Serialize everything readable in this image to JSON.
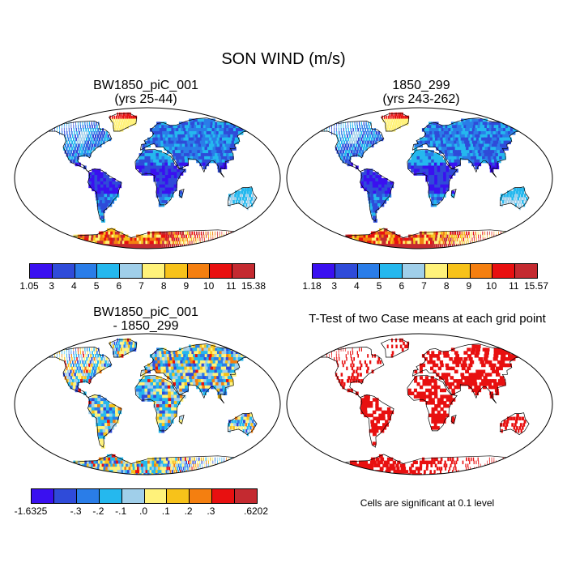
{
  "title": "SON WIND (m/s)",
  "panels": [
    {
      "id": "p1",
      "title_line1": "BW1850_piC_001",
      "title_line2": "(yrs 25-44)"
    },
    {
      "id": "p2",
      "title_line1": "1850_299",
      "title_line2": "(yrs 243-262)"
    },
    {
      "id": "p3",
      "title_line1": "BW1850_piC_001",
      "title_line2": "- 1850_299"
    },
    {
      "id": "p4",
      "title_line1": "T-Test of two Case means at each grid point",
      "title_line2": ""
    }
  ],
  "colorbars": [
    {
      "colors": [
        "#3a10f0",
        "#2f4bd9",
        "#2a7de8",
        "#25b8ee",
        "#a0cfea",
        "#fff27a",
        "#f7c21a",
        "#f47f10",
        "#e81010",
        "#c42a30"
      ],
      "labels": [
        "1.05",
        "3",
        "4",
        "5",
        "6",
        "7",
        "8",
        "9",
        "10",
        "11",
        "15.38"
      ]
    },
    {
      "colors": [
        "#3a10f0",
        "#2f4bd9",
        "#2a7de8",
        "#25b8ee",
        "#a0cfea",
        "#fff27a",
        "#f7c21a",
        "#f47f10",
        "#e81010",
        "#c42a30"
      ],
      "labels": [
        "1.18",
        "3",
        "4",
        "5",
        "6",
        "7",
        "8",
        "9",
        "10",
        "11",
        "15.57"
      ]
    },
    {
      "colors": [
        "#3a10f0",
        "#2f4bd9",
        "#2a7de8",
        "#25b8ee",
        "#a0cfea",
        "#fff27a",
        "#f7c21a",
        "#f47f10",
        "#e81010",
        "#c42a30"
      ],
      "labels": [
        "-1.6325",
        "",
        "-.3",
        "-.2",
        "-.1",
        ".0",
        ".1",
        ".2",
        ".3",
        "",
        ".6202"
      ]
    }
  ],
  "significance_note": "Cells are significant at 0.1 level",
  "colors": {
    "significant": "#e81010",
    "outline": "#000000"
  }
}
